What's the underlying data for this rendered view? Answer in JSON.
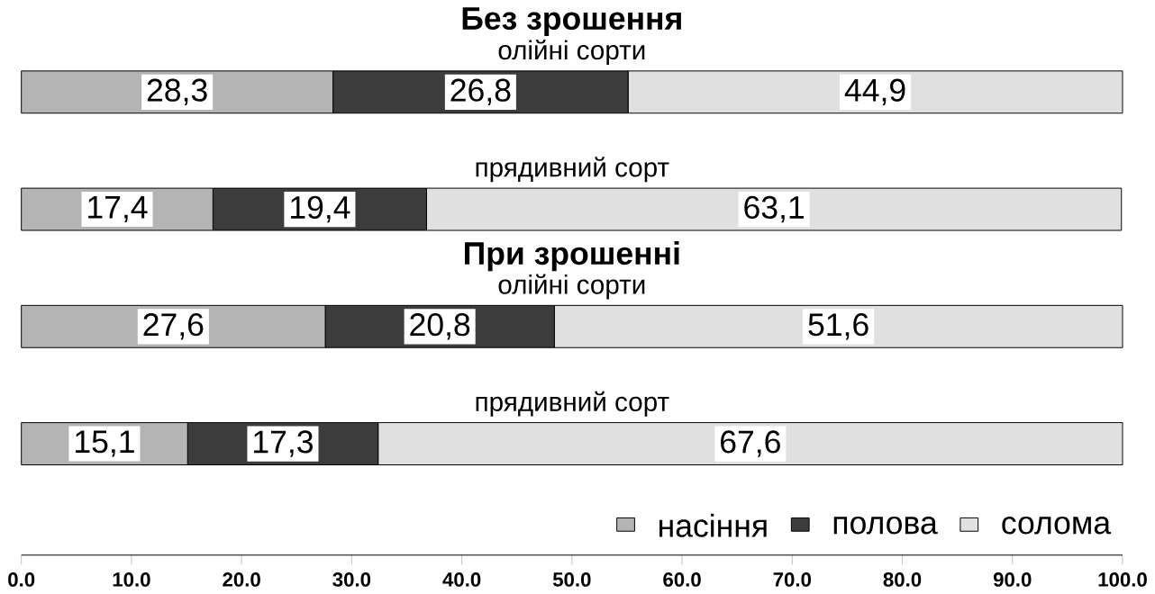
{
  "chart_data": {
    "type": "bar",
    "orientation": "horizontal",
    "stacked": true,
    "categories": [
      "олійні сорти",
      "прядивний сорт",
      "олійні сорти",
      "прядивний сорт"
    ],
    "series": [
      {
        "name": "насіння",
        "color": "#b4b4b4",
        "values": [
          28.3,
          17.4,
          27.6,
          15.1
        ],
        "value_labels": [
          "28,3",
          "17,4",
          "27,6",
          "15,1"
        ]
      },
      {
        "name": "полова",
        "color": "#3c3c3c",
        "values": [
          26.8,
          19.4,
          20.8,
          17.3
        ],
        "value_labels": [
          "26,8",
          "19,4",
          "20,8",
          "17,3"
        ]
      },
      {
        "name": "солома",
        "color": "#e0e0e0",
        "values": [
          44.9,
          63.1,
          51.6,
          67.6
        ],
        "value_labels": [
          "44,9",
          "63,1",
          "51,6",
          "67,6"
        ]
      }
    ],
    "annotations": [
      "Без зрошення",
      "При зрошенні"
    ],
    "xlim": [
      0,
      100
    ],
    "xticks": [
      {
        "value": 0,
        "label": "0.0"
      },
      {
        "value": 10,
        "label": "10.0"
      },
      {
        "value": 20,
        "label": "20.0"
      },
      {
        "value": 30,
        "label": "30.0"
      },
      {
        "value": 40,
        "label": "40.0"
      },
      {
        "value": 50,
        "label": "50.0"
      },
      {
        "value": 60,
        "label": "60.0"
      },
      {
        "value": 70,
        "label": "70.0"
      },
      {
        "value": 80,
        "label": "80.0"
      },
      {
        "value": 90,
        "label": "90.0"
      },
      {
        "value": 100,
        "label": "100.0"
      }
    ],
    "legend": "bottom right",
    "grid": false
  }
}
